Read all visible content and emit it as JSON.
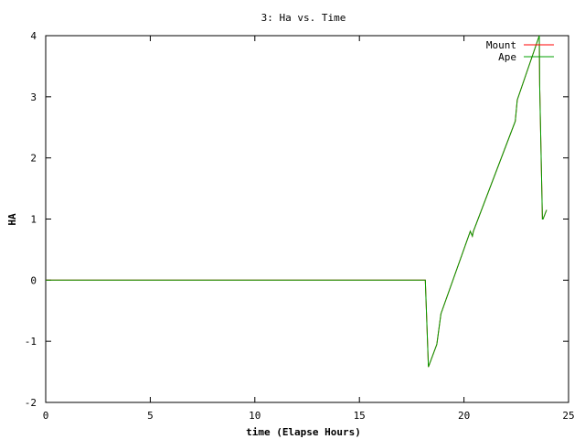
{
  "chart_data": {
    "type": "line",
    "title": "3: Ha vs. Time",
    "xlabel": "time (Elapse Hours)",
    "ylabel": "HA",
    "xlim": [
      0,
      25
    ],
    "ylim": [
      -2,
      4
    ],
    "xticks": [
      "0",
      "5",
      "10",
      "15",
      "20",
      "25"
    ],
    "yticks": [
      "-2",
      "-1",
      "0",
      "1",
      "2",
      "3",
      "4"
    ],
    "grid": false,
    "legend_position": "top-right",
    "series": [
      {
        "name": "Mount",
        "color": "#ff0000",
        "x": [
          0,
          18.15,
          18.3,
          18.7,
          18.9,
          20.3,
          20.4,
          20.45,
          22.45,
          22.55,
          23.6,
          23.62,
          23.75,
          23.78,
          23.95
        ],
        "y": [
          0,
          0,
          -1.42,
          -1.05,
          -0.55,
          0.8,
          0.72,
          0.8,
          2.6,
          2.95,
          4.0,
          3.2,
          1.0,
          1.0,
          1.15
        ]
      },
      {
        "name": "Ape",
        "color": "#00a000",
        "x": [
          0,
          18.15,
          18.3,
          18.7,
          18.9,
          20.3,
          20.4,
          20.45,
          22.45,
          22.55,
          23.6,
          23.62,
          23.75,
          23.78,
          23.95
        ],
        "y": [
          0,
          0,
          -1.42,
          -1.05,
          -0.55,
          0.8,
          0.72,
          0.8,
          2.6,
          2.95,
          4.0,
          3.2,
          1.0,
          1.0,
          1.15
        ]
      }
    ]
  }
}
